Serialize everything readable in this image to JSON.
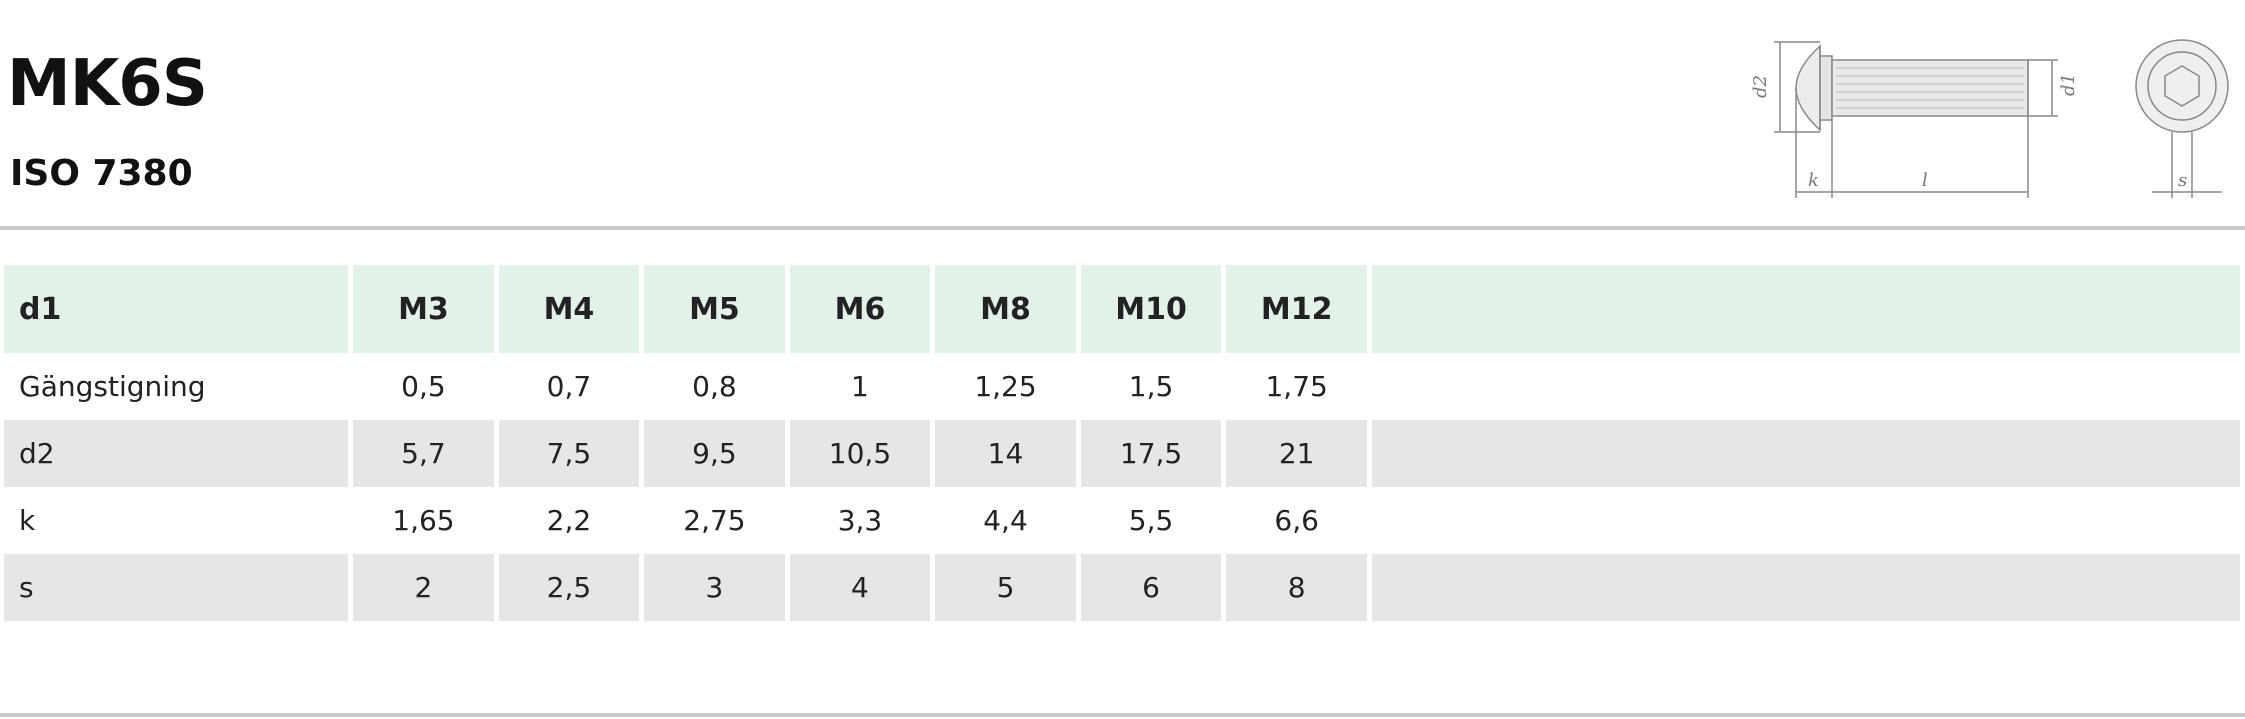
{
  "header": {
    "title": "MK6S",
    "standard": "ISO 7380"
  },
  "drawing": {
    "labels": {
      "d2": "d2",
      "d1": "d1",
      "k": "k",
      "l": "l",
      "s": "s"
    }
  },
  "table": {
    "header_label": "d1",
    "sizes": [
      "M3",
      "M4",
      "M5",
      "M6",
      "M8",
      "M10",
      "M12"
    ],
    "rows": [
      {
        "label": "Gängstigning",
        "values": [
          "0,5",
          "0,7",
          "0,8",
          "1",
          "1,25",
          "1,5",
          "1,75"
        ]
      },
      {
        "label": "d2",
        "values": [
          "5,7",
          "7,5",
          "9,5",
          "10,5",
          "14",
          "17,5",
          "21"
        ]
      },
      {
        "label": "k",
        "values": [
          "1,65",
          "2,2",
          "2,75",
          "3,3",
          "4,4",
          "5,5",
          "6,6"
        ]
      },
      {
        "label": "s",
        "values": [
          "2",
          "2,5",
          "3",
          "4",
          "5",
          "6",
          "8"
        ]
      }
    ]
  }
}
